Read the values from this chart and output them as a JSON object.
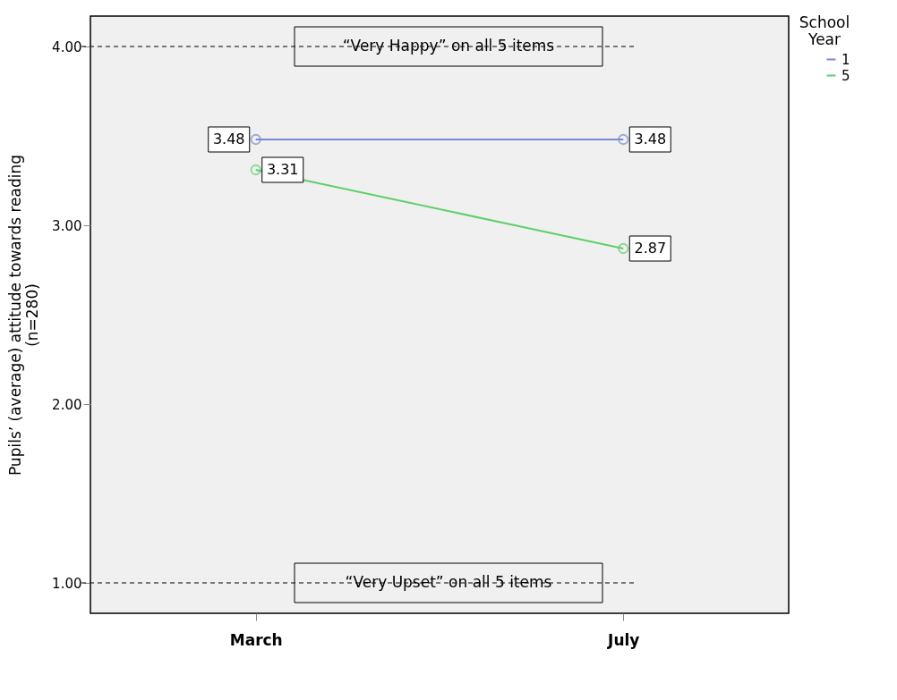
{
  "chart_data": {
    "type": "line",
    "ylabel": "Pupils’ (average) attitude towards reading\n(n=280)",
    "legend_title": "School\nYear",
    "categories": [
      "March",
      "July"
    ],
    "series": [
      {
        "name": "1",
        "color": "#7b8ad0",
        "values": [
          3.48,
          3.48
        ]
      },
      {
        "name": "5",
        "color": "#5ecf6a",
        "values": [
          3.31,
          2.87
        ]
      }
    ],
    "ylim": [
      0.83,
      4.17
    ],
    "yticks": [
      {
        "value": 1,
        "label": "1.00"
      },
      {
        "value": 2,
        "label": "2.00"
      },
      {
        "value": 3,
        "label": "3.00"
      },
      {
        "value": 4,
        "label": "4.00"
      }
    ],
    "ref_lines": [
      {
        "axis": "y",
        "value": 4,
        "label": "“Very Happy” on all 5 items",
        "color": "#000000",
        "line_style": "dashed"
      },
      {
        "axis": "y",
        "value": 1,
        "label": "“Very Upset” on all 5 items",
        "color": "#000000",
        "line_style": "dashed"
      }
    ],
    "data_labels": true,
    "marker": "circle",
    "line_style": "solid",
    "grid": false,
    "legend": "top right"
  }
}
